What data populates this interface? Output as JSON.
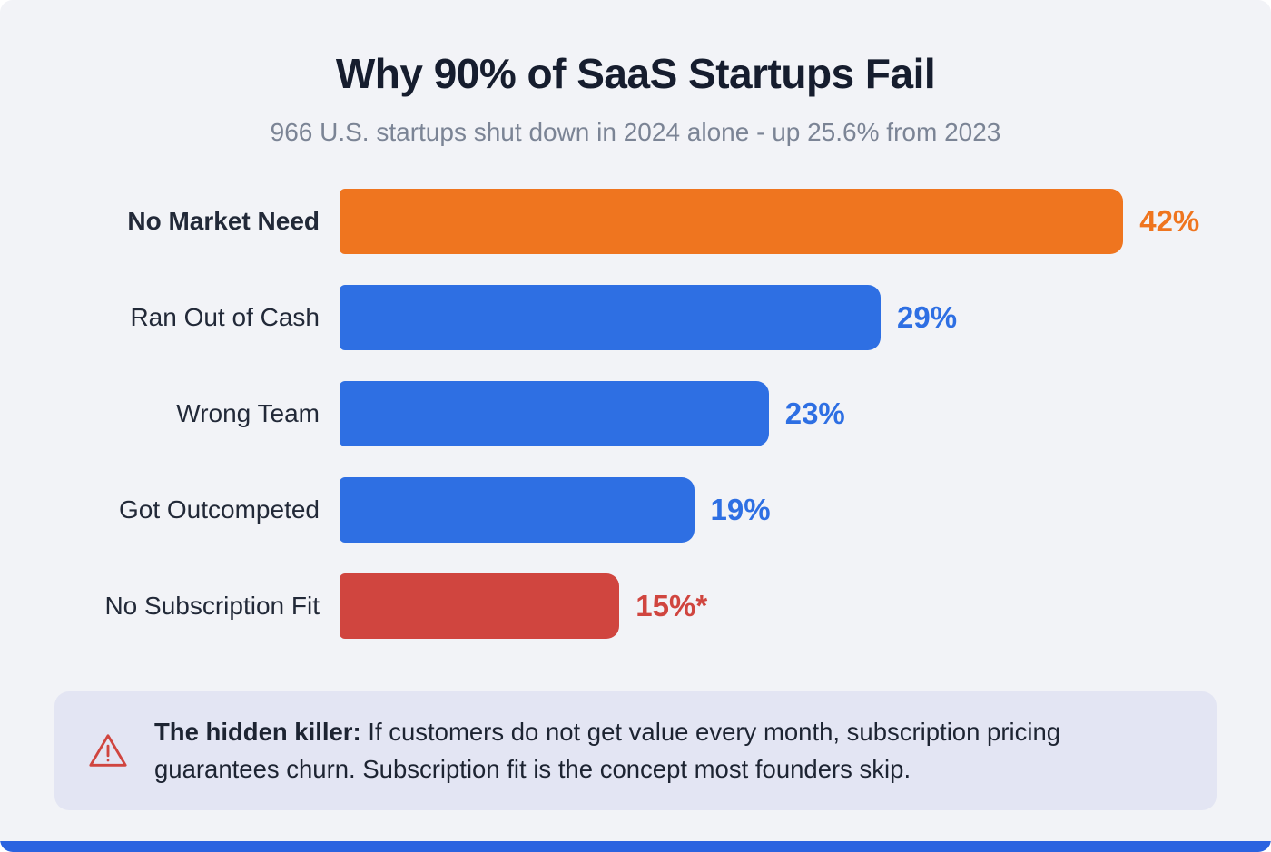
{
  "header": {
    "title": "Why 90% of SaaS Startups Fail",
    "subtitle": "966 U.S. startups shut down in 2024 alone - up 25.6% from 2023"
  },
  "chart_data": {
    "type": "bar",
    "orientation": "horizontal",
    "title": "Why 90% of SaaS Startups Fail",
    "subtitle": "966 U.S. startups shut down in 2024 alone - up 25.6% from 2023",
    "categories": [
      "No Market Need",
      "Ran Out of Cash",
      "Wrong Team",
      "Got Outcompeted",
      "No Subscription Fit"
    ],
    "values": [
      42,
      29,
      23,
      19,
      15
    ],
    "value_labels": [
      "42%",
      "29%",
      "23%",
      "19%",
      "15%*"
    ],
    "colors": [
      "#ef751f",
      "#2e6fe3",
      "#2e6fe3",
      "#2e6fe3",
      "#d0453f"
    ],
    "xlabel": "",
    "ylabel": "",
    "xmax": 47,
    "grid": false,
    "legend": false,
    "highlighted_category": "No Market Need"
  },
  "note": {
    "bold": "The hidden killer:",
    "text": " If customers do not get value every month, subscription pricing guarantees churn. Subscription fit is the concept most founders skip.",
    "icon": "warning-triangle-icon",
    "icon_color": "#d0453f"
  },
  "footer": {
    "accent_color": "#2b63e0"
  }
}
